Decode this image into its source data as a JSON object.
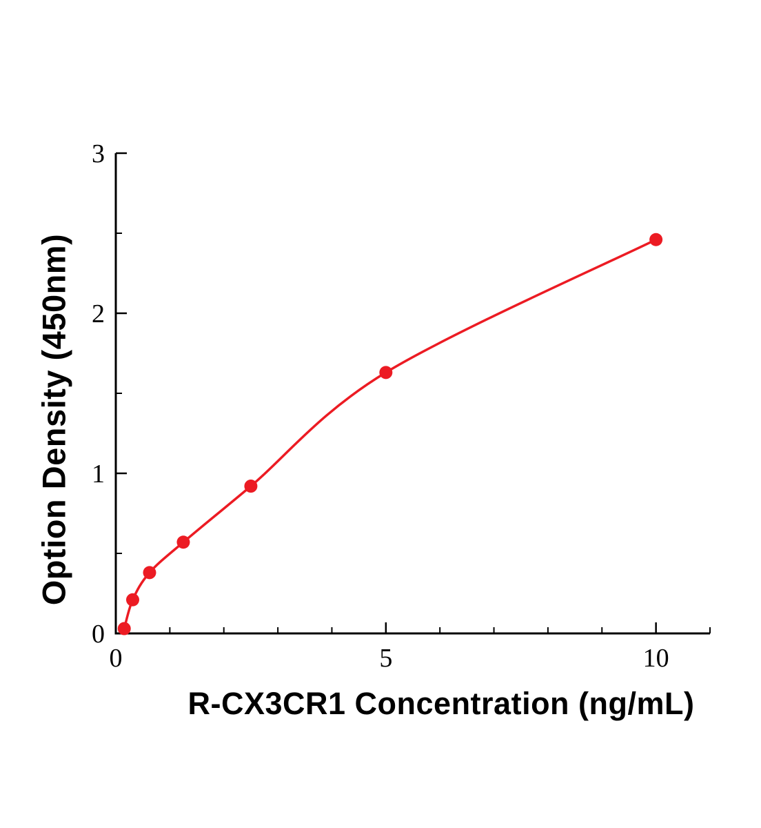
{
  "chart_data": {
    "type": "scatter",
    "title": "",
    "xlabel": "R-CX3CR1 Concentration (ng/mL)",
    "ylabel": "Option Density (450nm)",
    "x": [
      0.156,
      0.3125,
      0.625,
      1.25,
      2.5,
      5,
      10
    ],
    "y": [
      0.03,
      0.21,
      0.38,
      0.57,
      0.92,
      1.63,
      2.46
    ],
    "xlim": [
      0,
      11
    ],
    "ylim": [
      0,
      3
    ],
    "x_major_ticks": [
      0,
      5,
      10
    ],
    "y_major_ticks": [
      0,
      1,
      2,
      3
    ],
    "x_minor_step": 1,
    "y_minor_step": 0.5,
    "grid": false,
    "legend": "none",
    "curve": "smooth-fit-through-points",
    "series_color": "#ec1b23",
    "axis_color": "#000000",
    "marker_radius": 9.5,
    "line_width": 3.5
  }
}
